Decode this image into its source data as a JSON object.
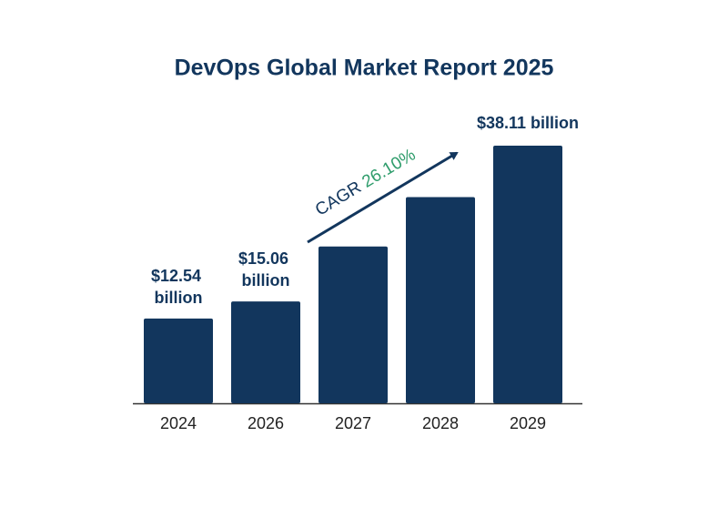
{
  "chart_data": {
    "type": "bar",
    "title": "DevOps Global Market Report 2025",
    "categories": [
      "2024",
      "2026",
      "2027",
      "2028",
      "2029"
    ],
    "values": [
      12.54,
      15.06,
      23.2,
      30.5,
      38.11
    ],
    "value_labels": [
      "$12.54 billion",
      "$15.06 billion",
      null,
      null,
      "$38.11 billion"
    ],
    "color": "#12365d",
    "annotation": {
      "label": "CAGR",
      "value": "26.10%",
      "color": "#2e9c6b"
    }
  }
}
